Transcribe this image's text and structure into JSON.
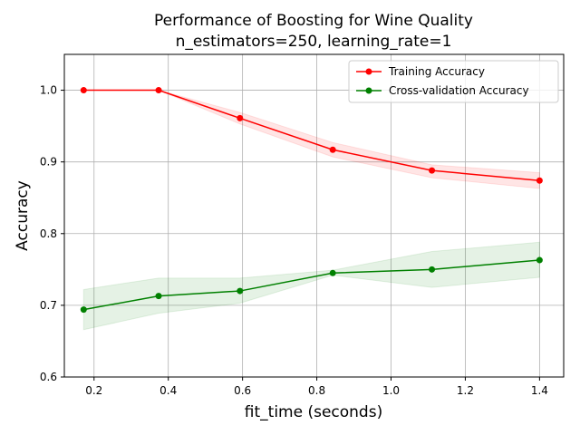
{
  "chart_data": {
    "type": "line",
    "title": "Performance of Boosting for Wine Quality",
    "subtitle": "n_estimators=250, learning_rate=1",
    "xlabel": "fit_time (seconds)",
    "ylabel": "Accuracy",
    "xlim": [
      0.12,
      1.465
    ],
    "ylim": [
      0.6,
      1.05
    ],
    "xticks": [
      0.2,
      0.4,
      0.6,
      0.8,
      1.0,
      1.2,
      1.4
    ],
    "xtick_labels": [
      "0.2",
      "0.4",
      "0.6",
      "0.8",
      "1.0",
      "1.2",
      "1.4"
    ],
    "yticks": [
      0.6,
      0.7,
      0.8,
      0.9,
      1.0
    ],
    "ytick_labels": [
      "0.6",
      "0.7",
      "0.8",
      "0.9",
      "1.0"
    ],
    "grid": true,
    "legend_position": "top-right",
    "series": [
      {
        "name": "Training Accuracy",
        "color": "#ff0000",
        "x": [
          0.172,
          0.374,
          0.593,
          0.843,
          1.11,
          1.4
        ],
        "y": [
          1.0,
          1.0,
          0.961,
          0.917,
          0.888,
          0.874
        ],
        "band_lower": [
          1.0,
          1.0,
          0.953,
          0.907,
          0.878,
          0.863
        ],
        "band_upper": [
          1.0,
          1.0,
          0.969,
          0.927,
          0.896,
          0.885
        ]
      },
      {
        "name": "Cross-validation Accuracy",
        "color": "#008000",
        "x": [
          0.172,
          0.374,
          0.593,
          0.843,
          1.11,
          1.4
        ],
        "y": [
          0.694,
          0.713,
          0.72,
          0.745,
          0.75,
          0.763
        ],
        "band_lower": [
          0.666,
          0.689,
          0.703,
          0.742,
          0.725,
          0.739
        ],
        "band_upper": [
          0.722,
          0.738,
          0.738,
          0.749,
          0.775,
          0.788
        ]
      }
    ]
  }
}
